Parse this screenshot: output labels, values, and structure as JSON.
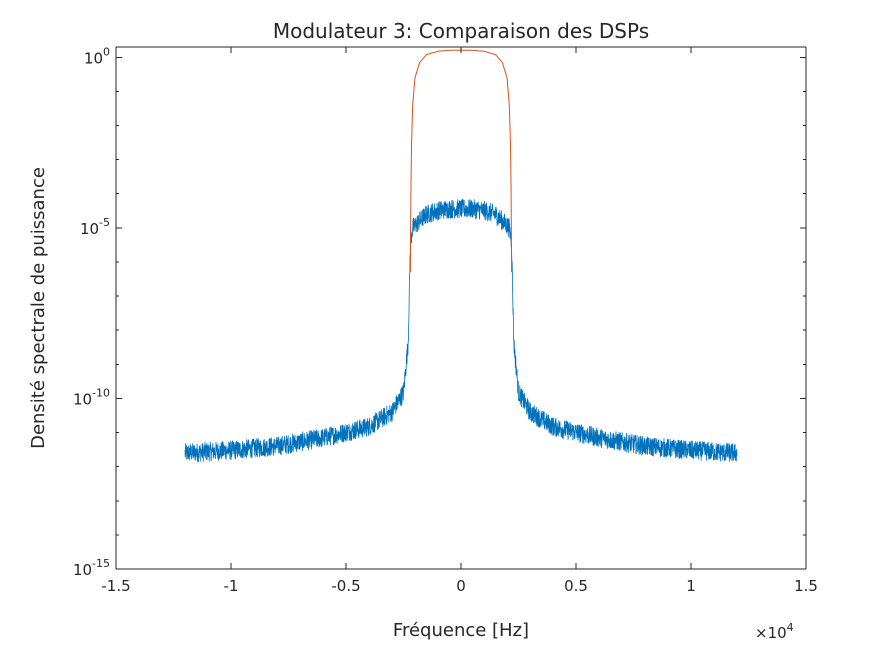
{
  "chart_data": {
    "type": "line",
    "title": "Modulateur 3: Comparaison des DSPs",
    "xlabel": "Fréquence [Hz]",
    "ylabel": "Densité spectrale de puissance",
    "x_exponent_label": "×10",
    "x_exponent": "4",
    "xlim": [
      -15000,
      15000
    ],
    "ylim": [
      1e-15,
      2
    ],
    "yscale": "log",
    "grid": false,
    "x_ticks": [
      {
        "value": -15000,
        "label": "-1.5"
      },
      {
        "value": -10000,
        "label": "-1"
      },
      {
        "value": -5000,
        "label": "-0.5"
      },
      {
        "value": 0,
        "label": "0"
      },
      {
        "value": 5000,
        "label": "0.5"
      },
      {
        "value": 10000,
        "label": "1"
      },
      {
        "value": 15000,
        "label": "1.5"
      }
    ],
    "y_ticks": [
      {
        "value": 1,
        "base": "10",
        "exp": "0"
      },
      {
        "value": 1e-05,
        "base": "10",
        "exp": "-5"
      },
      {
        "value": 1e-10,
        "base": "10",
        "exp": "-10"
      },
      {
        "value": 1e-15,
        "base": "10",
        "exp": "-15"
      }
    ],
    "series": [
      {
        "color": "#0072BD",
        "style": "noisy",
        "noise_decades": 0.28,
        "x": [
          -12000,
          -10000,
          -8000,
          -6000,
          -4000,
          -3000,
          -2500,
          -2300,
          -2250,
          -2200,
          -2100,
          -1500,
          -1000,
          -500,
          0,
          500,
          1000,
          1500,
          2100,
          2200,
          2250,
          2300,
          2500,
          3000,
          4000,
          6000,
          8000,
          10000,
          12000
        ],
        "y": [
          2.5e-12,
          3e-12,
          4e-12,
          7e-12,
          1.5e-11,
          4e-11,
          1.5e-10,
          4e-09,
          1e-07,
          4e-06,
          1e-05,
          2.5e-05,
          3.2e-05,
          3.6e-05,
          3.6e-05,
          3.6e-05,
          3.2e-05,
          2.5e-05,
          1e-05,
          4e-06,
          1e-07,
          4e-09,
          1.5e-10,
          4e-11,
          1.5e-11,
          7e-12,
          4e-12,
          3e-12,
          2.5e-12
        ]
      },
      {
        "color": "#D95319",
        "style": "smooth",
        "x": [
          -2200,
          -2180,
          -2150,
          -2100,
          -2000,
          -1800,
          -1500,
          -1000,
          -500,
          0,
          500,
          1000,
          1500,
          1800,
          2000,
          2100,
          2150,
          2180,
          2200
        ],
        "y": [
          5e-07,
          0.0001,
          0.003,
          0.04,
          0.25,
          0.7,
          1.2,
          1.5,
          1.6,
          1.6,
          1.6,
          1.5,
          1.2,
          0.7,
          0.25,
          0.04,
          0.003,
          0.0001,
          5e-07
        ]
      }
    ]
  }
}
